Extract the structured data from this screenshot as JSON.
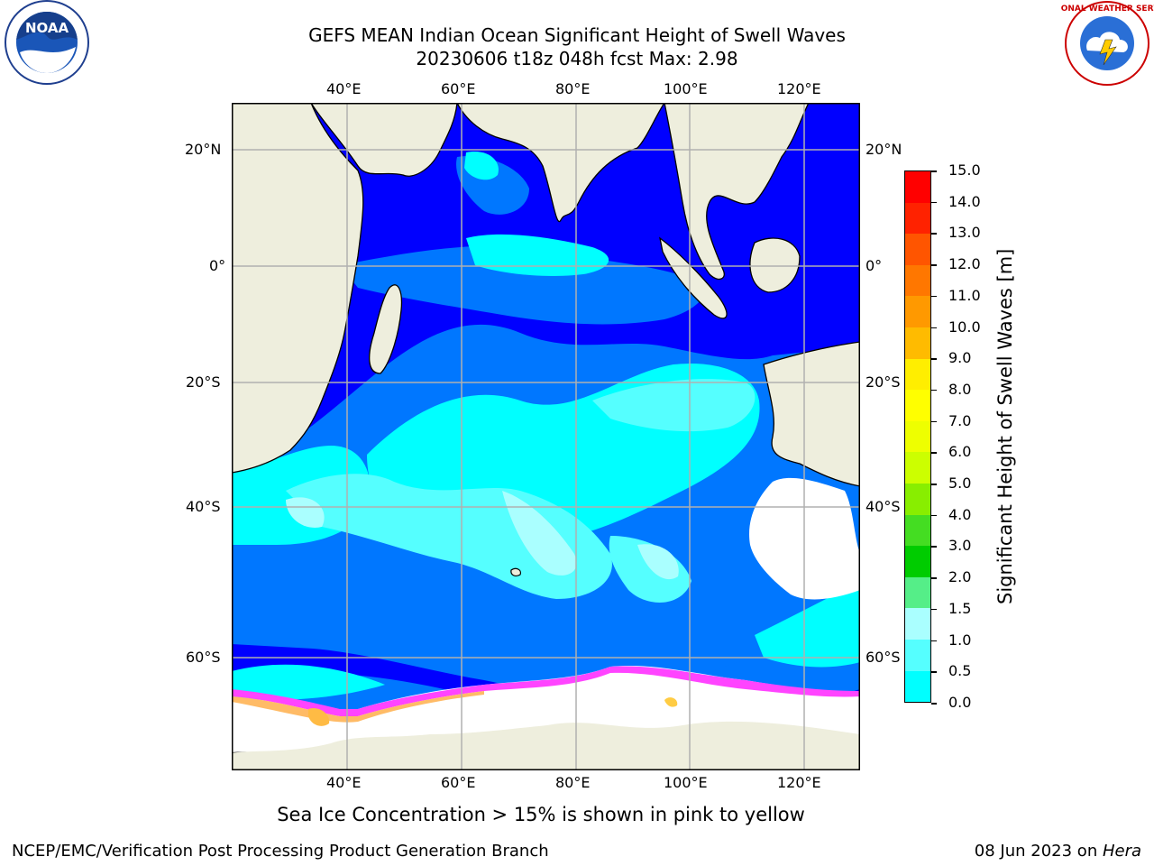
{
  "header": {
    "title_line1": "GEFS MEAN Indian Ocean Significant Height of Swell Waves",
    "title_line2": "20230606 t18z 048h fcst   Max: 2.98"
  },
  "logos": {
    "left": {
      "icon": "noaa-logo",
      "text": "NOAA"
    },
    "right": {
      "icon": "national-weather-service-logo",
      "text": "NATIONAL WEATHER SERVICE"
    }
  },
  "map": {
    "lon_ticks": [
      "40°E",
      "60°E",
      "80°E",
      "100°E",
      "120°E"
    ],
    "lat_ticks_left": [
      "20°N",
      "0°",
      "20°S",
      "40°S",
      "60°S"
    ],
    "lat_ticks_right": [
      "20°N",
      "0°",
      "20°S",
      "40°S",
      "60°S"
    ],
    "colors": {
      "land": "#eeeedd",
      "ice": "#ffffff",
      "sea_ice_edge": [
        "#ff33ff",
        "#ff99cc",
        "#ffcc66",
        "#ffbb44"
      ],
      "grid": "#b0b0b0"
    }
  },
  "colorbar": {
    "title": "Significant Height of Swell Waves [m]",
    "labels": [
      "15.0",
      "14.0",
      "13.0",
      "12.0",
      "11.0",
      "10.0",
      "9.0",
      "8.0",
      "7.0",
      "6.0",
      "5.0",
      "4.0",
      "3.0",
      "2.0",
      "1.5",
      "1.0",
      "0.5",
      "0.0"
    ],
    "colors_top_to_bottom": [
      "#ff0000",
      "#ff2200",
      "#ff5500",
      "#ff7700",
      "#ff9900",
      "#ffbb00",
      "#ffee00",
      "#ffff00",
      "#eeff00",
      "#ccff00",
      "#88ee00",
      "#44dd22",
      "#00cc00",
      "#55ee88",
      "#aaffff",
      "#55ffff",
      "#00ffff",
      "#0077ff",
      "#0000ff"
    ]
  },
  "caption": "Sea Ice Concentration > 15% is shown in pink to yellow",
  "footer": {
    "left": "NCEP/EMC/Verification Post Processing Product Generation Branch",
    "right_date": "08 Jun 2023 on ",
    "right_host": "Hera"
  }
}
